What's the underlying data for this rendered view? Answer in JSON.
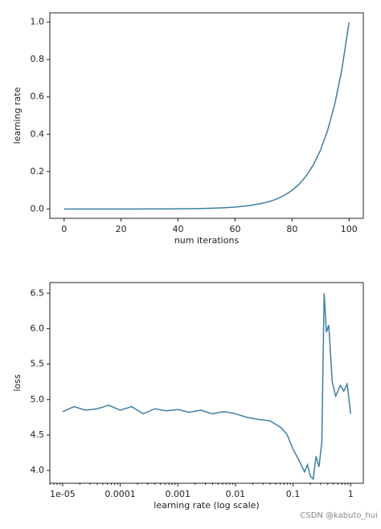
{
  "chart_data": [
    {
      "type": "line",
      "xlabel": "num iterations",
      "ylabel": "learning rate",
      "x": [
        0,
        5,
        10,
        15,
        20,
        25,
        30,
        35,
        40,
        45,
        50,
        55,
        60,
        65,
        70,
        72.5,
        75,
        77.5,
        80,
        82.5,
        85,
        87.5,
        90,
        92.5,
        95,
        97.5,
        100
      ],
      "series": [
        {
          "color": "#3d7fa3",
          "values": [
            1e-05,
            1.8e-05,
            3.2e-05,
            5.6e-05,
            0.0001,
            0.00018,
            0.00032,
            0.00056,
            0.001,
            0.0018,
            0.0032,
            0.0056,
            0.01,
            0.018,
            0.032,
            0.042,
            0.056,
            0.075,
            0.1,
            0.133,
            0.178,
            0.237,
            0.316,
            0.422,
            0.562,
            0.75,
            1.0
          ]
        }
      ],
      "xlim": [
        -5,
        105
      ],
      "ylim": [
        -0.05,
        1.05
      ],
      "xticks": [
        0,
        20,
        40,
        60,
        80,
        100
      ],
      "yticks": [
        {
          "value": 0,
          "label": "0.0"
        },
        0.2,
        0.4,
        0.6,
        0.8,
        {
          "value": 1,
          "label": "1.0"
        }
      ]
    },
    {
      "type": "line",
      "xlabel": "learning rate (log scale)",
      "ylabel": "loss",
      "xscale": "log",
      "x": [
        1e-05,
        1.58e-05,
        2.51e-05,
        3.98e-05,
        6.31e-05,
        0.0001,
        0.000158,
        0.000251,
        0.000398,
        0.000631,
        0.001,
        0.00158,
        0.00251,
        0.00398,
        0.00631,
        0.01,
        0.0158,
        0.0251,
        0.0398,
        0.0631,
        0.0794,
        0.1,
        0.126,
        0.158,
        0.178,
        0.2,
        0.224,
        0.251,
        0.282,
        0.316,
        0.347,
        0.38,
        0.417,
        0.479,
        0.55,
        0.661,
        0.759,
        0.871,
        1
      ],
      "series": [
        {
          "color": "#3d7fa3",
          "values": [
            4.83,
            4.9,
            4.85,
            4.87,
            4.92,
            4.85,
            4.9,
            4.8,
            4.87,
            4.84,
            4.86,
            4.82,
            4.85,
            4.8,
            4.83,
            4.8,
            4.75,
            4.72,
            4.7,
            4.6,
            4.5,
            4.3,
            4.15,
            3.98,
            4.08,
            3.92,
            3.88,
            4.2,
            4.05,
            4.4,
            6.5,
            5.95,
            6.05,
            5.25,
            5.05,
            5.2,
            5.12,
            5.22,
            4.8
          ]
        }
      ],
      "xlim": [
        6e-06,
        1.66
      ],
      "ylim": [
        3.82,
        6.65
      ],
      "xticks": [
        {
          "value": 1e-05,
          "label": "1e-05"
        },
        0.0001,
        0.001,
        0.01,
        0.1,
        1
      ],
      "yticks": [
        {
          "value": 4,
          "label": "4.0"
        },
        4.5,
        {
          "value": 5,
          "label": "5.0"
        },
        5.5,
        {
          "value": 6,
          "label": "6.0"
        },
        6.5
      ]
    }
  ],
  "watermark": "CSDN @kabuto_hui"
}
